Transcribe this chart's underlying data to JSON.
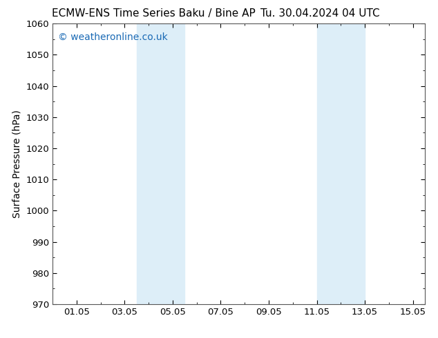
{
  "title_left": "ECMW-ENS Time Series Baku / Bine AP",
  "title_right": "Tu. 30.04.2024 04 UTC",
  "ylabel": "Surface Pressure (hPa)",
  "xlabel": "",
  "ylim": [
    970,
    1060
  ],
  "yticks": [
    970,
    980,
    990,
    1000,
    1010,
    1020,
    1030,
    1040,
    1050,
    1060
  ],
  "xtick_labels": [
    "01.05",
    "03.05",
    "05.05",
    "07.05",
    "09.05",
    "11.05",
    "13.05",
    "15.05"
  ],
  "xtick_positions": [
    1,
    3,
    5,
    7,
    9,
    11,
    13,
    15
  ],
  "xlim": [
    0.0,
    15.5
  ],
  "shaded_bands": [
    {
      "x_start": 3.5,
      "x_end": 5.5
    },
    {
      "x_start": 11.0,
      "x_end": 13.0
    }
  ],
  "shaded_color": "#ddeef8",
  "watermark": "© weatheronline.co.uk",
  "watermark_color": "#1a6ab5",
  "bg_color": "#ffffff",
  "plot_bg_color": "#ffffff",
  "title_fontsize": 11,
  "tick_fontsize": 9.5,
  "ylabel_fontsize": 10,
  "watermark_fontsize": 10,
  "spine_color": "#555555"
}
